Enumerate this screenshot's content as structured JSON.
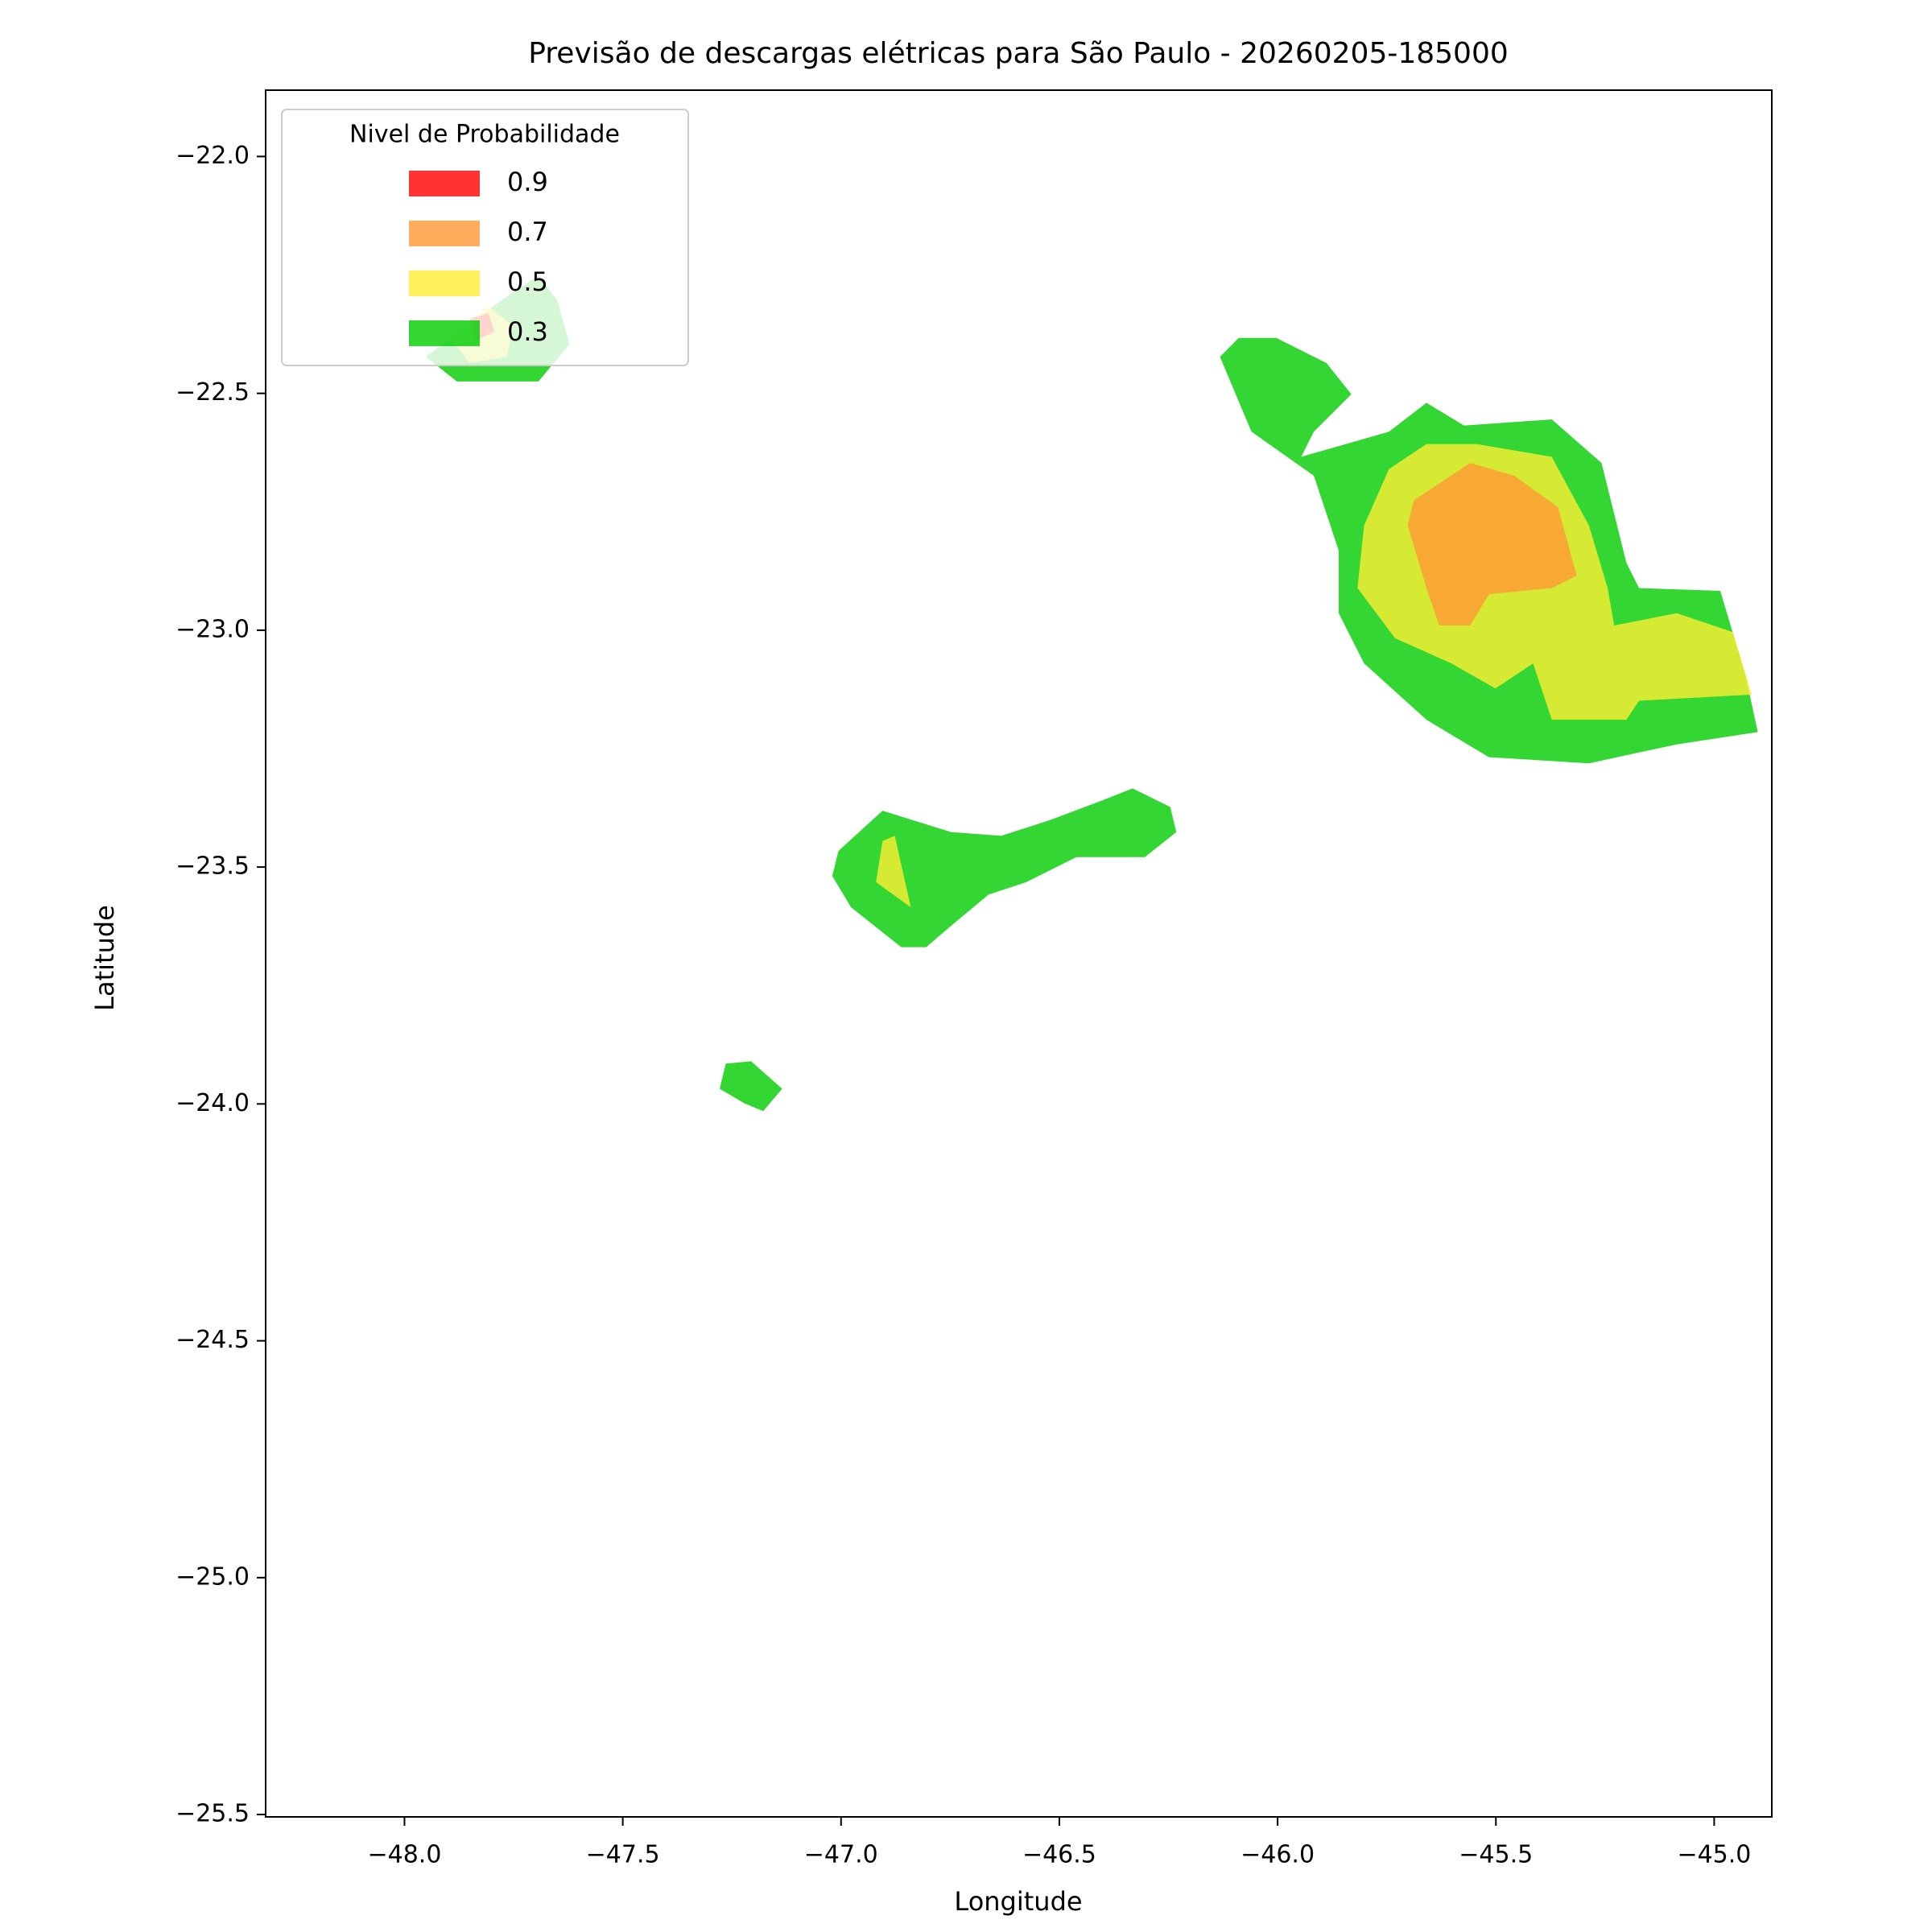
{
  "chart_data": {
    "type": "contourf",
    "title": "Previsão de descargas elétricas para São Paulo - 20260205-185000",
    "xlabel": "Longitude",
    "ylabel": "Latitude",
    "xlim": [
      -48.318,
      -44.868
    ],
    "ylim": [
      -25.505,
      -21.86
    ],
    "xticks": [
      {
        "value": -48,
        "label": "−48.0"
      },
      {
        "value": -47.5,
        "label": "−47.5"
      },
      {
        "value": -47,
        "label": "−47.0"
      },
      {
        "value": -46.5,
        "label": "−46.5"
      },
      {
        "value": -46,
        "label": "−46.0"
      },
      {
        "value": -45.5,
        "label": "−45.5"
      },
      {
        "value": -45,
        "label": "−45.0"
      }
    ],
    "yticks": [
      {
        "value": -22,
        "label": "−22.0"
      },
      {
        "value": -22.5,
        "label": "−22.5"
      },
      {
        "value": -23,
        "label": "−23.0"
      },
      {
        "value": -23.5,
        "label": "−23.5"
      },
      {
        "value": -24,
        "label": "−24.0"
      },
      {
        "value": -24.5,
        "label": "−24.5"
      },
      {
        "value": -25,
        "label": "−25.0"
      },
      {
        "value": -25.5,
        "label": "−25.5"
      }
    ],
    "legend": {
      "title": "Nivel de Probabilidade",
      "loc": "upper left"
    },
    "series": [
      {
        "name": "0.9",
        "color": "#ff0000",
        "regions": [
          {
            "x": [
              -47.851,
              -47.808,
              -47.794,
              -47.837
            ],
            "y": [
              -22.343,
              -22.33,
              -22.37,
              -22.388
            ]
          }
        ]
      },
      {
        "name": "0.7",
        "color": "#ff9933",
        "regions": [
          {
            "x": [
              -45.688,
              -45.559,
              -45.458,
              -45.358,
              -45.315,
              -45.372,
              -45.516,
              -45.559,
              -45.63,
              -45.659,
              -45.702
            ],
            "y": [
              -22.726,
              -22.647,
              -22.674,
              -22.74,
              -22.885,
              -22.911,
              -22.924,
              -22.99,
              -22.99,
              -22.911,
              -22.779
            ]
          }
        ]
      },
      {
        "name": "0.5",
        "color": "#ffee33",
        "regions": [
          {
            "x": [
              -45.745,
              -45.659,
              -45.544,
              -45.372,
              -45.287,
              -45.244,
              -45.229,
              -45.086,
              -44.957,
              -44.914,
              -45.172,
              -45.201,
              -45.372,
              -45.415,
              -45.501,
              -45.602,
              -45.731,
              -45.817,
              -45.802
            ],
            "y": [
              -22.66,
              -22.607,
              -22.607,
              -22.634,
              -22.779,
              -22.911,
              -22.99,
              -22.964,
              -23.004,
              -23.136,
              -23.149,
              -23.189,
              -23.189,
              -23.07,
              -23.123,
              -23.07,
              -23.017,
              -22.911,
              -22.779
            ]
          },
          {
            "x": [
              -46.905,
              -46.877,
              -46.84,
              -46.92
            ],
            "y": [
              -23.445,
              -23.434,
              -23.585,
              -23.532
            ]
          },
          {
            "x": [
              -47.894,
              -47.808,
              -47.751,
              -47.765,
              -47.851
            ],
            "y": [
              -22.383,
              -22.317,
              -22.357,
              -22.423,
              -22.436
            ]
          }
        ]
      },
      {
        "name": "0.3",
        "color": "#00cc00",
        "regions": [
          {
            "x": [
              -46.089,
              -46.003,
              -45.888,
              -45.831,
              -45.917,
              -45.946,
              -45.745,
              -45.659,
              -45.573,
              -45.372,
              -45.258,
              -45.201,
              -45.172,
              -44.986,
              -44.928,
              -44.9,
              -45.086,
              -45.287,
              -45.516,
              -45.659,
              -45.802,
              -45.86,
              -45.86,
              -45.917,
              -46.06,
              -46.132
            ],
            "y": [
              -22.383,
              -22.383,
              -22.436,
              -22.502,
              -22.581,
              -22.634,
              -22.581,
              -22.52,
              -22.568,
              -22.555,
              -22.647,
              -22.858,
              -22.911,
              -22.917,
              -23.096,
              -23.215,
              -23.241,
              -23.281,
              -23.268,
              -23.189,
              -23.07,
              -22.964,
              -22.832,
              -22.674,
              -22.581,
              -22.423
            ]
          },
          {
            "x": [
              -47.006,
              -46.905,
              -46.748,
              -46.633,
              -46.519,
              -46.404,
              -46.332,
              -46.246,
              -46.232,
              -46.304,
              -46.461,
              -46.576,
              -46.662,
              -46.748,
              -46.805,
              -46.862,
              -46.977,
              -47.02
            ],
            "y": [
              -23.466,
              -23.381,
              -23.426,
              -23.434,
              -23.4,
              -23.36,
              -23.334,
              -23.373,
              -23.426,
              -23.479,
              -23.479,
              -23.532,
              -23.558,
              -23.624,
              -23.669,
              -23.669,
              -23.585,
              -23.519
            ]
          },
          {
            "x": [
              -47.264,
              -47.206,
              -47.135,
              -47.178,
              -47.221,
              -47.278
            ],
            "y": [
              -23.915,
              -23.91,
              -23.968,
              -24.015,
              -23.999,
              -23.968
            ]
          },
          {
            "x": [
              -47.951,
              -47.779,
              -47.693,
              -47.65,
              -47.622,
              -47.693,
              -47.88
            ],
            "y": [
              -22.423,
              -22.304,
              -22.251,
              -22.304,
              -22.396,
              -22.475,
              -22.475
            ]
          }
        ]
      }
    ]
  }
}
